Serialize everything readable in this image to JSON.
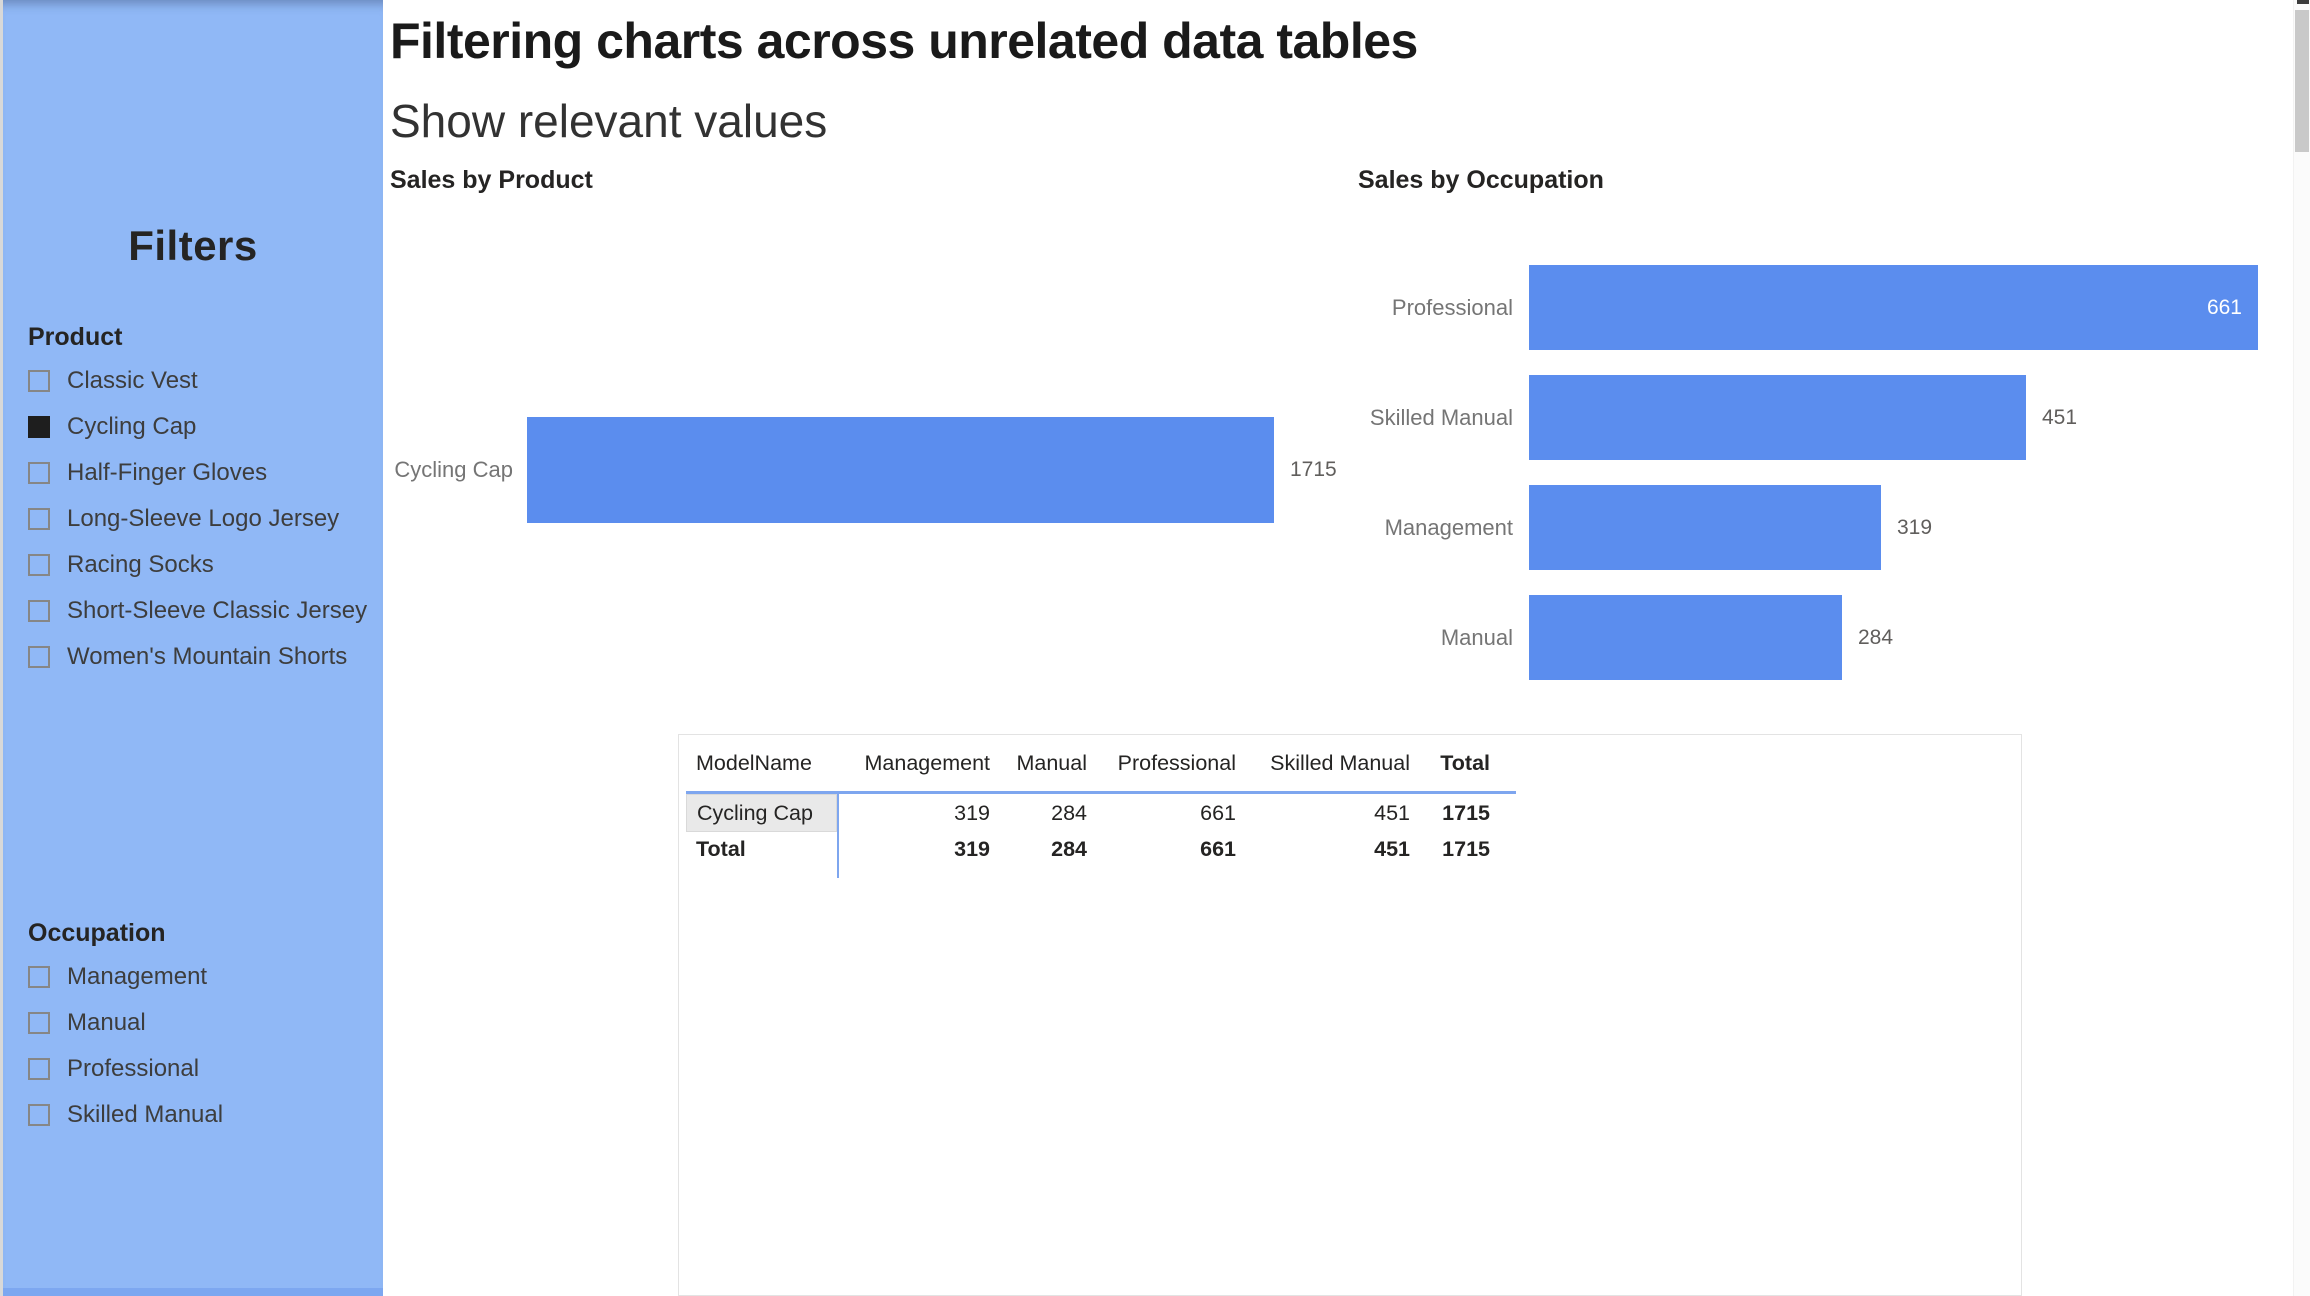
{
  "page": {
    "title": "Filtering charts across unrelated data tables",
    "subtitle": "Show relevant values"
  },
  "sidebar": {
    "title": "Filters",
    "sections": [
      {
        "label": "Product",
        "items": [
          {
            "label": "Classic Vest",
            "checked": false
          },
          {
            "label": "Cycling Cap",
            "checked": true
          },
          {
            "label": "Half-Finger Gloves",
            "checked": false
          },
          {
            "label": "Long-Sleeve Logo Jersey",
            "checked": false
          },
          {
            "label": "Racing Socks",
            "checked": false
          },
          {
            "label": "Short-Sleeve Classic Jersey",
            "checked": false
          },
          {
            "label": "Women's Mountain Shorts",
            "checked": false
          }
        ]
      },
      {
        "label": "Occupation",
        "items": [
          {
            "label": "Management",
            "checked": false
          },
          {
            "label": "Manual",
            "checked": false
          },
          {
            "label": "Professional",
            "checked": false
          },
          {
            "label": "Skilled Manual",
            "checked": false
          }
        ]
      }
    ]
  },
  "charts": {
    "product": {
      "title": "Sales by Product",
      "bars": [
        {
          "label": "Cycling Cap",
          "value": 1715,
          "value_label": "1715",
          "value_inside": false
        }
      ]
    },
    "occupation": {
      "title": "Sales by Occupation",
      "bars": [
        {
          "label": "Professional",
          "value": 661,
          "value_label": "661",
          "value_inside": true
        },
        {
          "label": "Skilled Manual",
          "value": 451,
          "value_label": "451",
          "value_inside": false
        },
        {
          "label": "Management",
          "value": 319,
          "value_label": "319",
          "value_inside": false
        },
        {
          "label": "Manual",
          "value": 284,
          "value_label": "284",
          "value_inside": false
        }
      ]
    }
  },
  "table": {
    "columns": [
      {
        "label": "ModelName",
        "bold": false
      },
      {
        "label": "Management",
        "bold": false
      },
      {
        "label": "Manual",
        "bold": false
      },
      {
        "label": "Professional",
        "bold": false
      },
      {
        "label": "Skilled Manual",
        "bold": false
      },
      {
        "label": "Total",
        "bold": true
      }
    ],
    "rows": [
      {
        "cells": [
          "Cycling Cap",
          "319",
          "284",
          "661",
          "451",
          "1715"
        ],
        "selected_first_cell": true,
        "bold_row": false
      },
      {
        "cells": [
          "Total",
          "319",
          "284",
          "661",
          "451",
          "1715"
        ],
        "selected_first_cell": false,
        "bold_row": true
      }
    ]
  },
  "colors": {
    "sidebar_blue": "#90b8f6",
    "sidebar_bottom_edge": "#7da7f0",
    "bar_blue": "#5b8dee",
    "table_accent_blue": "#7ea6ef",
    "checkbox_checked": "#1e1e1e",
    "selected_cell_gray": "#e9e9e9"
  },
  "chart_data": [
    {
      "type": "bar",
      "orientation": "horizontal",
      "title": "Sales by Product",
      "categories": [
        "Cycling Cap"
      ],
      "values": [
        1715
      ],
      "xlabel": "",
      "ylabel": "",
      "xlim": [
        0,
        1760
      ],
      "grid": false,
      "data_labels": true
    },
    {
      "type": "bar",
      "orientation": "horizontal",
      "title": "Sales by Occupation",
      "categories": [
        "Professional",
        "Skilled Manual",
        "Management",
        "Manual"
      ],
      "values": [
        661,
        451,
        319,
        284
      ],
      "xlabel": "",
      "ylabel": "",
      "xlim": [
        0,
        661
      ],
      "grid": false,
      "data_labels": true
    },
    {
      "type": "table",
      "title": "Sales matrix",
      "columns": [
        "ModelName",
        "Management",
        "Manual",
        "Professional",
        "Skilled Manual",
        "Total"
      ],
      "rows": [
        [
          "Cycling Cap",
          319,
          284,
          661,
          451,
          1715
        ],
        [
          "Total",
          319,
          284,
          661,
          451,
          1715
        ]
      ]
    }
  ]
}
